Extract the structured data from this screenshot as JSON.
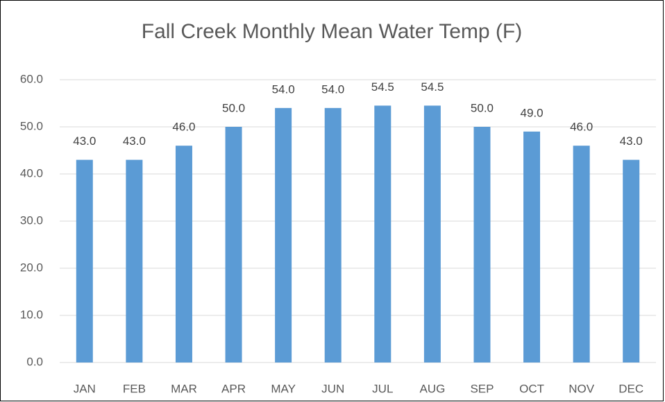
{
  "chart_data": {
    "type": "bar",
    "title": "Fall Creek Monthly Mean Water Temp (F)",
    "categories": [
      "JAN",
      "FEB",
      "MAR",
      "APR",
      "MAY",
      "JUN",
      "JUL",
      "AUG",
      "SEP",
      "OCT",
      "NOV",
      "DEC"
    ],
    "values": [
      43.0,
      43.0,
      46.0,
      50.0,
      54.0,
      54.0,
      54.5,
      54.5,
      50.0,
      49.0,
      46.0,
      43.0
    ],
    "value_labels": [
      "43.0",
      "43.0",
      "46.0",
      "50.0",
      "54.0",
      "54.0",
      "54.5",
      "54.5",
      "50.0",
      "49.0",
      "46.0",
      "43.0"
    ],
    "color": "#5b9bd5",
    "ylim": [
      0,
      60
    ],
    "yticks": [
      {
        "value": 0,
        "label": "0.0"
      },
      {
        "value": 10,
        "label": "10.0"
      },
      {
        "value": 20,
        "label": "20.0"
      },
      {
        "value": 30,
        "label": "30.0"
      },
      {
        "value": 40,
        "label": "40.0"
      },
      {
        "value": 50,
        "label": "50.0"
      },
      {
        "value": 60,
        "label": "60.0"
      }
    ],
    "grid": true
  }
}
